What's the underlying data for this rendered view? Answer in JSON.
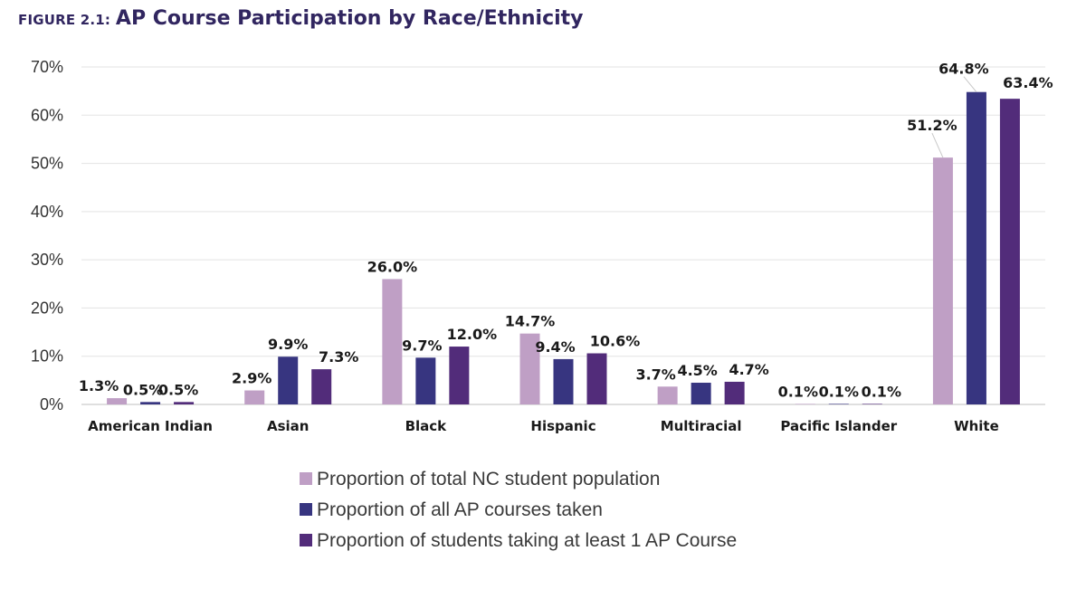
{
  "figure_label": "FIGURE 2.1",
  "figure_separator": ":",
  "chart_data": {
    "type": "bar",
    "title": "AP Course Participation by Race/Ethnicity",
    "categories": [
      "American Indian",
      "Asian",
      "Black",
      "Hispanic",
      "Multiracial",
      "Pacific Islander",
      "White"
    ],
    "series": [
      {
        "name": "Proportion of total NC student population",
        "color": "#bf9fc5",
        "values": [
          1.3,
          2.9,
          26.0,
          14.7,
          3.7,
          0.1,
          51.2
        ],
        "labels": [
          "1.3%",
          "2.9%",
          "26.0%",
          "14.7%",
          "3.7%",
          "0.1%",
          "51.2%"
        ]
      },
      {
        "name": "Proportion of all AP courses taken",
        "color": "#373580",
        "values": [
          0.5,
          9.9,
          9.7,
          9.4,
          4.5,
          0.1,
          64.8
        ],
        "labels": [
          "0.5%",
          "9.9%",
          "9.7%",
          "9.4%",
          "4.5%",
          "0.1%",
          "64.8%"
        ]
      },
      {
        "name": "Proportion of students taking at least 1 AP Course",
        "color": "#522c7a",
        "values": [
          0.5,
          7.3,
          12.0,
          10.6,
          4.7,
          0.1,
          63.4
        ],
        "labels": [
          "0.5%",
          "7.3%",
          "12.0%",
          "10.6%",
          "4.7%",
          "0.1%",
          "63.4%"
        ]
      }
    ],
    "ylim": [
      0,
      70
    ],
    "yticks": [
      0,
      10,
      20,
      30,
      40,
      50,
      60,
      70
    ],
    "ytick_labels": [
      "0%",
      "10%",
      "20%",
      "30%",
      "40%",
      "50%",
      "60%",
      "70%"
    ],
    "xlabel": "",
    "ylabel": "",
    "grid": true,
    "legend_position": "bottom-center"
  }
}
